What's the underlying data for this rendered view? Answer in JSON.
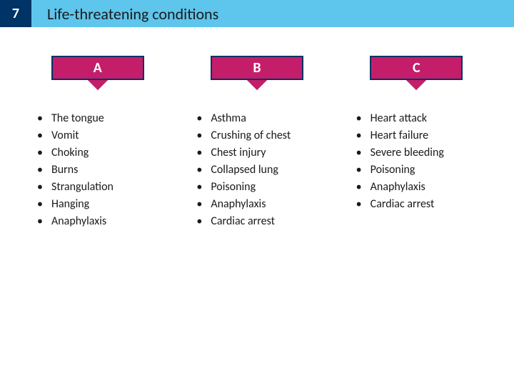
{
  "page_number": "7",
  "title": "Life-threatening conditions",
  "styling": {
    "page_number_bg": "#003366",
    "title_bar_bg": "#5ec5ed",
    "badge_fill": "#c41e6a",
    "badge_border": "#003366",
    "badge_text_color": "#ffffff",
    "body_text_color": "#1a1a1a",
    "title_fontsize": 22,
    "list_fontsize": 16
  },
  "columns": [
    {
      "label": "A",
      "items": [
        "The tongue",
        "Vomit",
        "Choking",
        "Burns",
        "Strangulation",
        "Hanging",
        "Anaphylaxis"
      ]
    },
    {
      "label": "B",
      "items": [
        "Asthma",
        "Crushing of chest",
        "Chest injury",
        "Collapsed lung",
        "Poisoning",
        "Anaphylaxis",
        "Cardiac arrest"
      ]
    },
    {
      "label": "C",
      "items": [
        "Heart attack",
        "Heart failure",
        "Severe bleeding",
        "Poisoning",
        "Anaphylaxis",
        "Cardiac arrest"
      ]
    }
  ]
}
